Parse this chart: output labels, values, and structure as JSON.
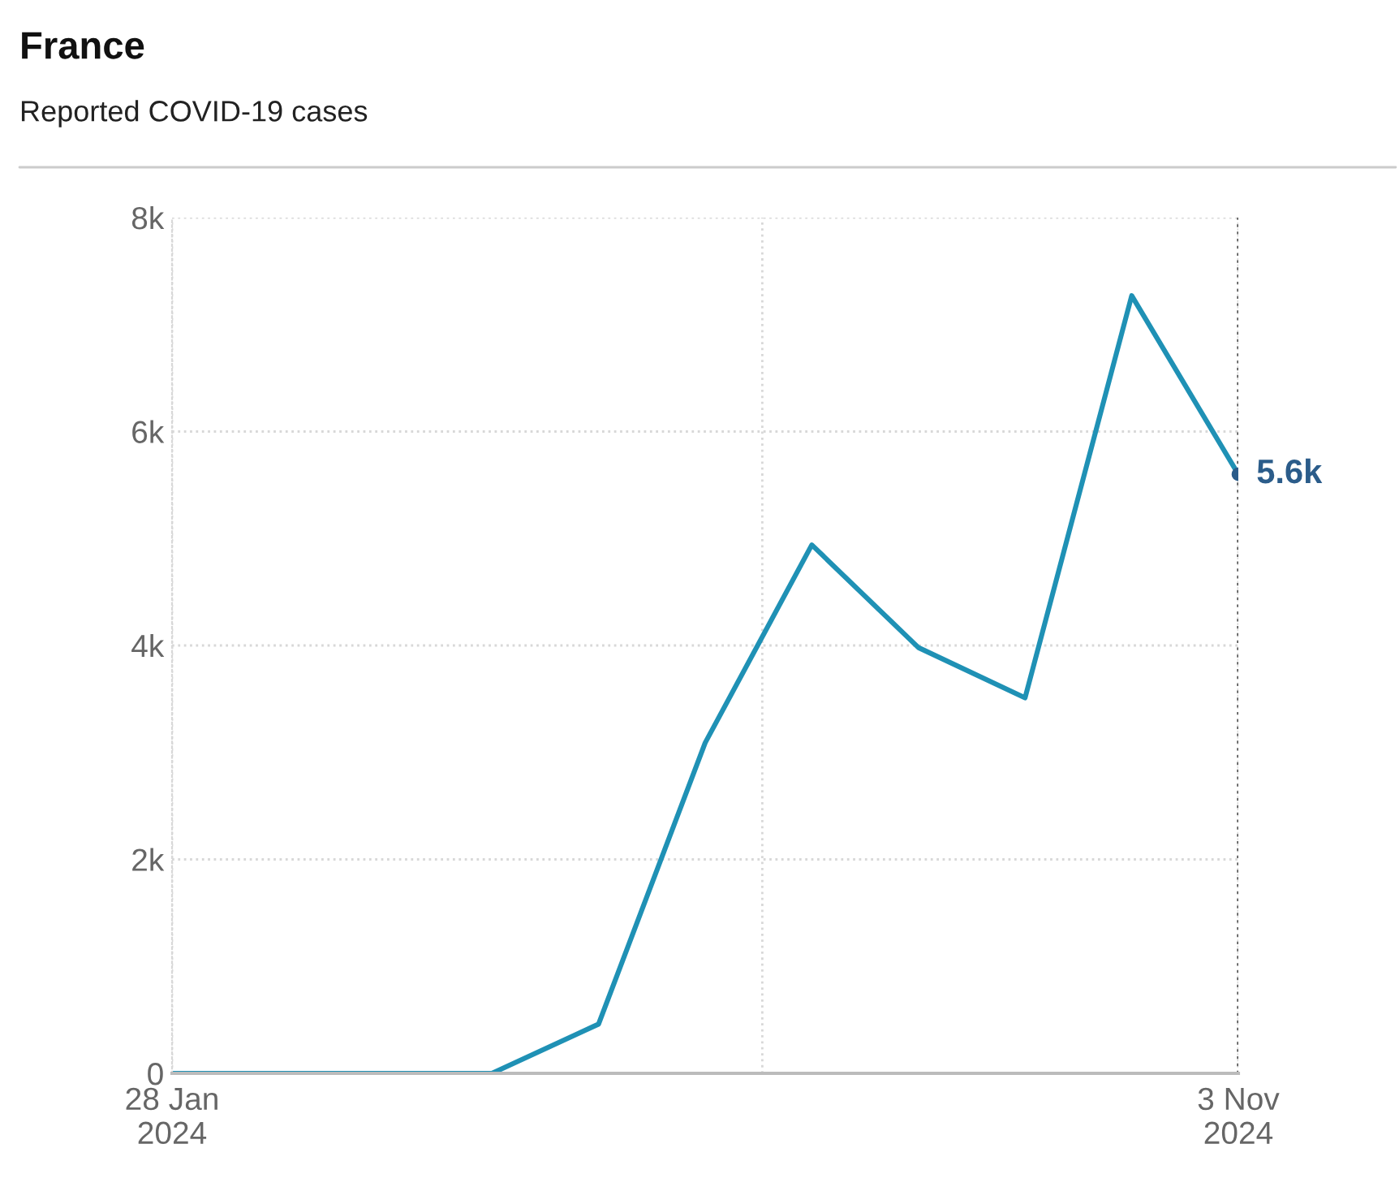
{
  "chart_data": {
    "type": "line",
    "title": "France",
    "subtitle": "Reported COVID-19 cases",
    "x": [
      "2024-01-28",
      "2024-02-25",
      "2024-03-24",
      "2024-04-21",
      "2024-05-19",
      "2024-06-16",
      "2024-07-14",
      "2024-08-11",
      "2024-09-08",
      "2024-10-06",
      "2024-11-03"
    ],
    "series": [
      {
        "color": "#1f91b5",
        "values": [
          0,
          0,
          0,
          0,
          460,
          3090,
          4940,
          3980,
          3510,
          7270,
          5600
        ],
        "value_labels": [
          null,
          null,
          null,
          null,
          null,
          null,
          null,
          null,
          null,
          null,
          "5.6k"
        ]
      }
    ],
    "xlim": [
      "2024-01-28",
      "2024-11-03"
    ],
    "xticks": [
      {
        "value": "2024-01-28",
        "label": "28 Jan\n2024"
      },
      {
        "value": "2024-07-01",
        "label": null
      },
      {
        "value": "2024-11-03",
        "label": "3 Nov\n2024"
      }
    ],
    "ylim": [
      0,
      8000
    ],
    "yticks": [
      {
        "value": 0,
        "label": "0"
      },
      {
        "value": 2000,
        "label": "2k"
      },
      {
        "value": 4000,
        "label": "4k"
      },
      {
        "value": 6000,
        "label": "6k"
      },
      {
        "value": 8000,
        "label": "8k"
      }
    ],
    "ref_lines": [
      {
        "axis": "x",
        "value": "2024-11-03",
        "color": "#555555",
        "line_style": "dotted"
      }
    ],
    "grid": true,
    "legend": false,
    "line_style": "solid",
    "marker": "none"
  }
}
